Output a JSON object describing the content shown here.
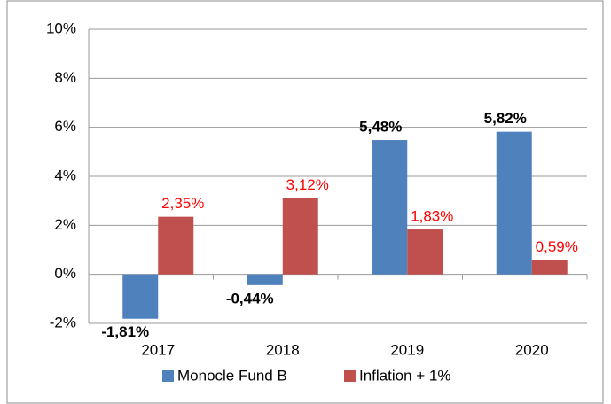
{
  "chart_data": {
    "type": "bar",
    "categories": [
      "2017",
      "2018",
      "2019",
      "2020"
    ],
    "series": [
      {
        "name": "Monocle Fund B",
        "color": "#4f81bd",
        "values": [
          -1.81,
          -0.44,
          5.48,
          5.82
        ],
        "value_labels": [
          "-1,81%",
          "-0,44%",
          "5,48%",
          "5,82%"
        ]
      },
      {
        "name": "Inflation + 1%",
        "color": "#c0504d",
        "values": [
          2.35,
          3.12,
          1.83,
          0.59
        ],
        "value_labels": [
          "2,35%",
          "3,12%",
          "1,83%",
          "0,59%"
        ]
      }
    ],
    "ylim": [
      -2,
      10
    ],
    "yticks": [
      {
        "value": -2,
        "label": "-2%"
      },
      {
        "value": 0,
        "label": "0%"
      },
      {
        "value": 2,
        "label": "2%"
      },
      {
        "value": 4,
        "label": "4%"
      },
      {
        "value": 6,
        "label": "6%"
      },
      {
        "value": 8,
        "label": "8%"
      },
      {
        "value": 10,
        "label": "10%"
      }
    ],
    "grid": true,
    "legend": "bottom"
  }
}
